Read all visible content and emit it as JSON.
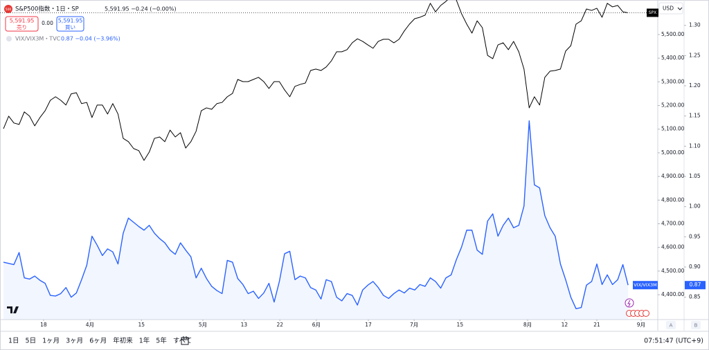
{
  "header": {
    "logo": "500",
    "symbol": "S&P500指数・1日・SP",
    "quote": "5,591.95 −0.24 (−0.00%)",
    "sell_price": "5,591.95",
    "sell": "売り",
    "spread": "0.00",
    "buy_price": "5,591.95",
    "buy": "買い",
    "currency": "USD"
  },
  "legend2": {
    "symbol": "VIX/VIX3M・TVC",
    "quote": "0.87 −0.04 (−3.96%)"
  },
  "last_value_label": "0.87",
  "toolbar": {
    "ranges": [
      "1日",
      "5日",
      "1ヶ月",
      "3ヶ月",
      "6ヶ月",
      "年初来",
      "1年",
      "5年",
      "すべて"
    ],
    "time": "07:51:47 (UTC+9)"
  },
  "axis_buttons": [
    "A",
    "B"
  ],
  "chart_data": {
    "type": "line",
    "x": [
      0,
      1,
      2,
      3,
      4,
      5,
      6,
      7,
      8,
      9,
      10,
      11,
      12,
      13,
      14,
      15,
      16,
      17,
      18,
      19,
      20,
      21,
      22,
      23,
      24,
      25,
      26,
      27,
      28,
      29,
      30,
      31,
      32,
      33,
      34,
      35,
      36,
      37,
      38,
      39,
      40,
      41,
      42,
      43,
      44,
      45,
      46,
      47,
      48,
      49,
      50,
      51,
      52,
      53,
      54,
      55,
      56,
      57,
      58,
      59,
      60,
      61,
      62,
      63,
      64,
      65,
      66,
      67,
      68,
      69,
      70,
      71,
      72,
      73,
      74,
      75,
      76,
      77,
      78,
      79,
      80,
      81,
      82,
      83,
      84,
      85,
      86,
      87,
      88,
      89,
      90,
      91,
      92,
      93,
      94,
      95,
      96,
      97,
      98,
      99,
      100,
      101,
      102,
      103,
      104,
      105,
      106,
      107,
      108,
      109,
      110,
      111,
      112,
      113,
      114,
      115,
      116,
      117,
      118,
      119,
      120
    ],
    "xlim": [
      -0.67,
      125.7
    ],
    "xticks": [
      {
        "value": 7.7,
        "label": "18"
      },
      {
        "value": 16.6,
        "label": "4月"
      },
      {
        "value": 26.5,
        "label": "15"
      },
      {
        "value": 38.3,
        "label": "5月"
      },
      {
        "value": 46.2,
        "label": "13"
      },
      {
        "value": 53.1,
        "label": "22"
      },
      {
        "value": 60.1,
        "label": "6月"
      },
      {
        "value": 70.1,
        "label": "17"
      },
      {
        "value": 78.9,
        "label": "7月"
      },
      {
        "value": 87.7,
        "label": "15"
      },
      {
        "value": 100.7,
        "label": "8月"
      },
      {
        "value": 107.8,
        "label": "12"
      },
      {
        "value": 114,
        "label": "21"
      },
      {
        "value": 122.5,
        "label": "9月"
      }
    ],
    "ylim": [
      4295,
      5646
    ],
    "yticks": [
      {
        "value": 4400,
        "label": "4,400.00"
      },
      {
        "value": 4500,
        "label": "4,500.00"
      },
      {
        "value": 4600,
        "label": "4,600.00"
      },
      {
        "value": 4700,
        "label": "4,700.00"
      },
      {
        "value": 4800,
        "label": "4,800.00"
      },
      {
        "value": 4900,
        "label": "4,900.00"
      },
      {
        "value": 5000,
        "label": "5,000.00"
      },
      {
        "value": 5100,
        "label": "5,100.00"
      },
      {
        "value": 5200,
        "label": "5,200.00"
      },
      {
        "value": 5300,
        "label": "5,300.00"
      },
      {
        "value": 5400,
        "label": "5,400.00"
      },
      {
        "value": 5500,
        "label": "5,500.00"
      }
    ],
    "y2lim": [
      0.813,
      1.342
    ],
    "y2ticks": [
      0.85,
      {
        "value": 0.9,
        "label": "0.90"
      },
      0.95,
      {
        "value": 1.0,
        "label": "1.00"
      },
      1.05,
      {
        "value": 1.1,
        "label": "1.10"
      },
      1.15,
      {
        "value": 1.2,
        "label": "1.20"
      },
      1.25,
      {
        "value": 1.3,
        "label": "1.30"
      }
    ],
    "series": [
      {
        "name": "SPX",
        "color": "#000000",
        "values": [
          5102,
          5155,
          5126,
          5120,
          5173,
          5155,
          5114,
          5149,
          5178,
          5222,
          5237,
          5222,
          5202,
          5249,
          5254,
          5208,
          5213,
          5149,
          5202,
          5202,
          5164,
          5208,
          5164,
          5061,
          5047,
          5018,
          5009,
          4968,
          5003,
          5061,
          5067,
          5047,
          5096,
          5067,
          5085,
          5020,
          5047,
          5091,
          5178,
          5190,
          5184,
          5208,
          5213,
          5237,
          5251,
          5310,
          5301,
          5301,
          5310,
          5319,
          5301,
          5272,
          5301,
          5301,
          5266,
          5237,
          5281,
          5289,
          5295,
          5348,
          5354,
          5348,
          5363,
          5389,
          5427,
          5427,
          5436,
          5465,
          5482,
          5471,
          5456,
          5442,
          5471,
          5480,
          5480,
          5465,
          5480,
          5515,
          5544,
          5567,
          5573,
          5582,
          5632,
          5596,
          5623,
          5640,
          5661,
          5646,
          5588,
          5544,
          5506,
          5558,
          5529,
          5412,
          5398,
          5456,
          5465,
          5436,
          5471,
          5427,
          5354,
          5190,
          5237,
          5202,
          5319,
          5345,
          5348,
          5354,
          5430,
          5453,
          5544,
          5558,
          5608,
          5602,
          5611,
          5573,
          5632,
          5617,
          5623,
          5596,
          5592
        ]
      },
      {
        "name": "VIX/VIX3M",
        "color": "#2962ff",
        "axis": "y2",
        "values": [
          0.908,
          0.906,
          0.904,
          0.924,
          0.882,
          0.88,
          0.885,
          0.878,
          0.873,
          0.853,
          0.852,
          0.856,
          0.866,
          0.85,
          0.857,
          0.879,
          0.903,
          0.951,
          0.936,
          0.919,
          0.93,
          0.925,
          0.905,
          0.956,
          0.981,
          0.974,
          0.967,
          0.961,
          0.969,
          0.956,
          0.947,
          0.94,
          0.928,
          0.921,
          0.94,
          0.928,
          0.917,
          0.882,
          0.898,
          0.881,
          0.868,
          0.861,
          0.856,
          0.911,
          0.908,
          0.881,
          0.871,
          0.856,
          0.86,
          0.848,
          0.857,
          0.873,
          0.842,
          0.876,
          0.922,
          0.926,
          0.879,
          0.885,
          0.882,
          0.866,
          0.862,
          0.847,
          0.879,
          0.876,
          0.85,
          0.844,
          0.856,
          0.853,
          0.837,
          0.862,
          0.87,
          0.876,
          0.866,
          0.853,
          0.848,
          0.856,
          0.862,
          0.857,
          0.865,
          0.862,
          0.871,
          0.868,
          0.882,
          0.876,
          0.865,
          0.882,
          0.887,
          0.912,
          0.933,
          0.961,
          0.961,
          0.928,
          0.921,
          0.976,
          0.988,
          0.951,
          0.969,
          0.981,
          0.965,
          0.969,
          1.001,
          1.142,
          1.036,
          1.031,
          0.985,
          0.965,
          0.951,
          0.905,
          0.879,
          0.85,
          0.831,
          0.833,
          0.87,
          0.876,
          0.905,
          0.871,
          0.887,
          0.871,
          0.879,
          0.904,
          0.87
        ]
      }
    ]
  }
}
